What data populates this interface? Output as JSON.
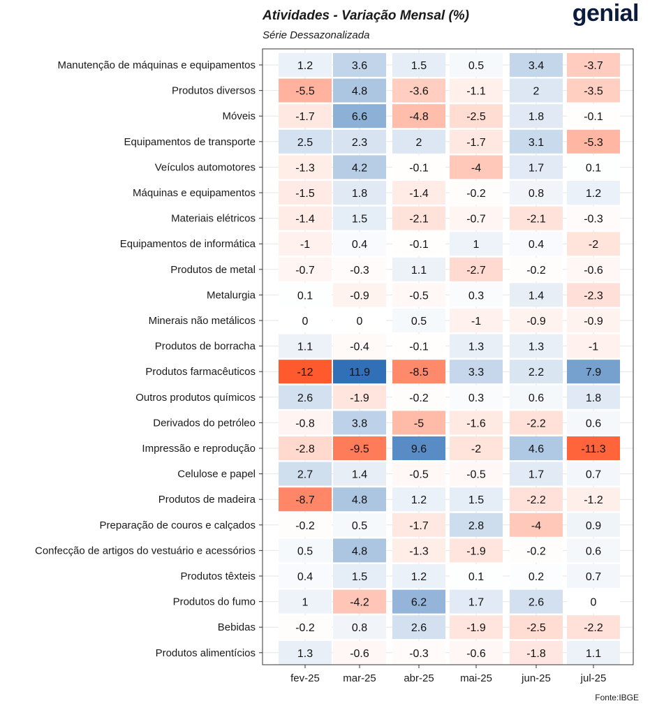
{
  "header": {
    "title": "Atividades - Variação Mensal (%)",
    "subtitle": "Série Dessazonalizada",
    "logo_text": "genial"
  },
  "footer": {
    "source": "Fonte:IBGE"
  },
  "colors": {
    "negative_strong": "#ff5a2e",
    "positive_strong": "#2f6fb5",
    "neutral": "#ffffff",
    "grid": "#e6e6e6",
    "panel_border": "#333333"
  },
  "chart_data": {
    "type": "heatmap",
    "title": "Atividades - Variação Mensal (%)",
    "subtitle": "Série Dessazonalizada",
    "x": [
      "fev-25",
      "mar-25",
      "abr-25",
      "mai-25",
      "jun-25",
      "jul-25"
    ],
    "y": [
      "Manutenção de máquinas e equipamentos",
      "Produtos diversos",
      "Móveis",
      "Equipamentos de transporte",
      "Veículos automotores",
      "Máquinas e equipamentos",
      "Materiais elétricos",
      "Equipamentos de informática",
      "Produtos de metal",
      "Metalurgia",
      "Minerais não metálicos",
      "Produtos de borracha",
      "Produtos farmacêuticos",
      "Outros produtos químicos",
      "Derivados do petróleo",
      "Impressão e reprodução",
      "Celulose e papel",
      "Produtos de madeira",
      "Preparação de couros e calçados",
      "Confecção de artigos do vestuário e acessórios",
      "Produtos têxteis",
      "Produtos do fumo",
      "Bebidas",
      "Produtos alimentícios"
    ],
    "values": [
      [
        1.2,
        3.6,
        1.5,
        0.5,
        3.4,
        -3.7
      ],
      [
        -5.5,
        4.8,
        -3.6,
        -1.1,
        2,
        -3.5
      ],
      [
        -1.7,
        6.6,
        -4.8,
        -2.5,
        1.8,
        -0.1
      ],
      [
        2.5,
        2.3,
        2,
        -1.7,
        3.1,
        -5.3
      ],
      [
        -1.3,
        4.2,
        -0.1,
        -4,
        1.7,
        0.1
      ],
      [
        -1.5,
        1.8,
        -1.4,
        -0.2,
        0.8,
        1.2
      ],
      [
        -1.4,
        1.5,
        -2.1,
        -0.7,
        -2.1,
        -0.3
      ],
      [
        -1,
        0.4,
        -0.1,
        1,
        0.4,
        -2
      ],
      [
        -0.7,
        -0.3,
        1.1,
        -2.7,
        -0.2,
        -0.6
      ],
      [
        0.1,
        -0.9,
        -0.5,
        0.3,
        1.4,
        -2.3
      ],
      [
        0,
        0,
        0.5,
        -1,
        -0.9,
        -0.9
      ],
      [
        1.1,
        -0.4,
        -0.1,
        1.3,
        1.3,
        -1
      ],
      [
        -12,
        11.9,
        -8.5,
        3.3,
        2.2,
        7.9
      ],
      [
        2.6,
        -1.9,
        -0.2,
        0.3,
        0.6,
        1.8
      ],
      [
        -0.8,
        3.8,
        -5,
        -1.6,
        -2.2,
        0.6
      ],
      [
        -2.8,
        -9.5,
        9.6,
        -2,
        4.6,
        -11.3
      ],
      [
        2.7,
        1.4,
        -0.5,
        -0.5,
        1.7,
        0.7
      ],
      [
        -8.7,
        4.8,
        1.2,
        1.5,
        -2.2,
        -1.2
      ],
      [
        -0.2,
        0.5,
        -1.7,
        2.8,
        -4,
        0.9
      ],
      [
        0.5,
        4.8,
        -1.3,
        -1.9,
        -0.2,
        0.6
      ],
      [
        0.4,
        1.5,
        1.2,
        0.1,
        0.2,
        0.7
      ],
      [
        1,
        -4.2,
        6.2,
        1.7,
        2.6,
        0
      ],
      [
        -0.2,
        0.8,
        2.6,
        -1.9,
        -2.5,
        -2.2
      ],
      [
        1.3,
        -0.6,
        -0.3,
        -0.6,
        -1.8,
        1.1
      ]
    ],
    "color_scale": {
      "min": -12,
      "max": 12,
      "low": "#ff5a2e",
      "mid": "#ffffff",
      "high": "#2f6fb5"
    },
    "grid": true,
    "legend": "none"
  }
}
